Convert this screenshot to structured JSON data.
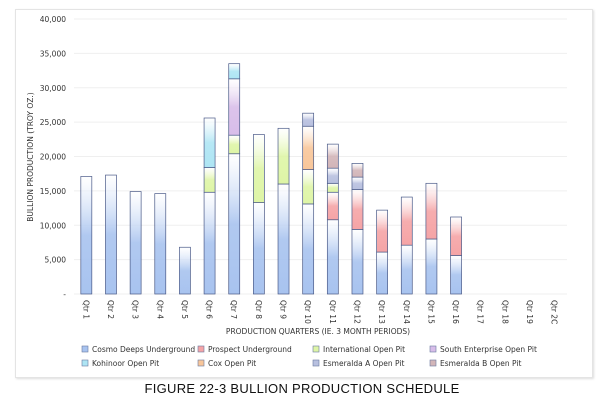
{
  "caption": "FIGURE 22-3 BULLION PRODUCTION SCHEDULE",
  "chart_data": {
    "type": "bar",
    "stacked": true,
    "title": "",
    "xlabel": "PRODUCTION QUARTERS (IE. 3 MONTH PERIODS)",
    "ylabel": "BULLION PRODUCTION (TROY OZ.)",
    "ylim": [
      0,
      40000
    ],
    "yticks": [
      0,
      5000,
      10000,
      15000,
      20000,
      25000,
      30000,
      35000,
      40000
    ],
    "ytick_labels": [
      "-",
      "5,000",
      "10,000",
      "15,000",
      "20,000",
      "25,000",
      "30,000",
      "35,000",
      "40,000"
    ],
    "grid": true,
    "legend_position": "bottom",
    "categories": [
      "Qtr 1",
      "Qtr 2",
      "Qtr 3",
      "Qtr 4",
      "Qtr 5",
      "Qtr 6",
      "Qtr 7",
      "Qtr 8",
      "Qtr 9",
      "Qtr 10",
      "Qtr 11",
      "Qtr 12",
      "Qtr 13",
      "Qtr 14",
      "Qtr 15",
      "Qtr 16",
      "Qtr 17",
      "Qtr 18",
      "Qtr 19",
      "Qtr 2C"
    ],
    "series": [
      {
        "name": "Cosmo Deeps Underground",
        "color": "#a8c3ef",
        "values": [
          17100,
          17300,
          14900,
          14600,
          6800,
          14800,
          20400,
          13300,
          16000,
          13100,
          10800,
          9400,
          6100,
          7100,
          8000,
          5600,
          0,
          0,
          0,
          0
        ]
      },
      {
        "name": "Prospect Underground",
        "color": "#f5a4a6",
        "values": [
          0,
          0,
          0,
          0,
          0,
          0,
          0,
          0,
          0,
          0,
          4000,
          5800,
          6100,
          7000,
          8100,
          5600,
          0,
          0,
          0,
          0
        ]
      },
      {
        "name": "International Open Pit",
        "color": "#def5a6",
        "values": [
          0,
          0,
          0,
          0,
          0,
          3600,
          2700,
          9900,
          8100,
          5000,
          1300,
          0,
          0,
          0,
          0,
          0,
          0,
          0,
          0,
          0
        ]
      },
      {
        "name": "South Enterprise Open Pit",
        "color": "#d8bde9",
        "values": [
          0,
          0,
          0,
          0,
          0,
          0,
          8200,
          0,
          0,
          0,
          0,
          0,
          0,
          0,
          0,
          0,
          0,
          0,
          0,
          0
        ]
      },
      {
        "name": "Kohinoor Open Pit",
        "color": "#aee5f4",
        "values": [
          0,
          0,
          0,
          0,
          0,
          7200,
          2200,
          0,
          0,
          0,
          0,
          0,
          0,
          0,
          0,
          0,
          0,
          0,
          0,
          0
        ]
      },
      {
        "name": "Cox Open Pit",
        "color": "#f8c69a",
        "values": [
          0,
          0,
          0,
          0,
          0,
          0,
          0,
          0,
          0,
          6300,
          0,
          0,
          0,
          0,
          0,
          0,
          0,
          0,
          0,
          0
        ]
      },
      {
        "name": "Esmeralda A Open Pit",
        "color": "#b8c0df",
        "values": [
          0,
          0,
          0,
          0,
          0,
          0,
          0,
          0,
          0,
          1900,
          2200,
          1800,
          0,
          0,
          0,
          0,
          0,
          0,
          0,
          0
        ]
      },
      {
        "name": "Esmeralda B Open Pit",
        "color": "#d2b5b8",
        "values": [
          0,
          0,
          0,
          0,
          0,
          0,
          0,
          0,
          0,
          0,
          3500,
          2000,
          0,
          0,
          0,
          0,
          0,
          0,
          0,
          0
        ]
      }
    ]
  }
}
